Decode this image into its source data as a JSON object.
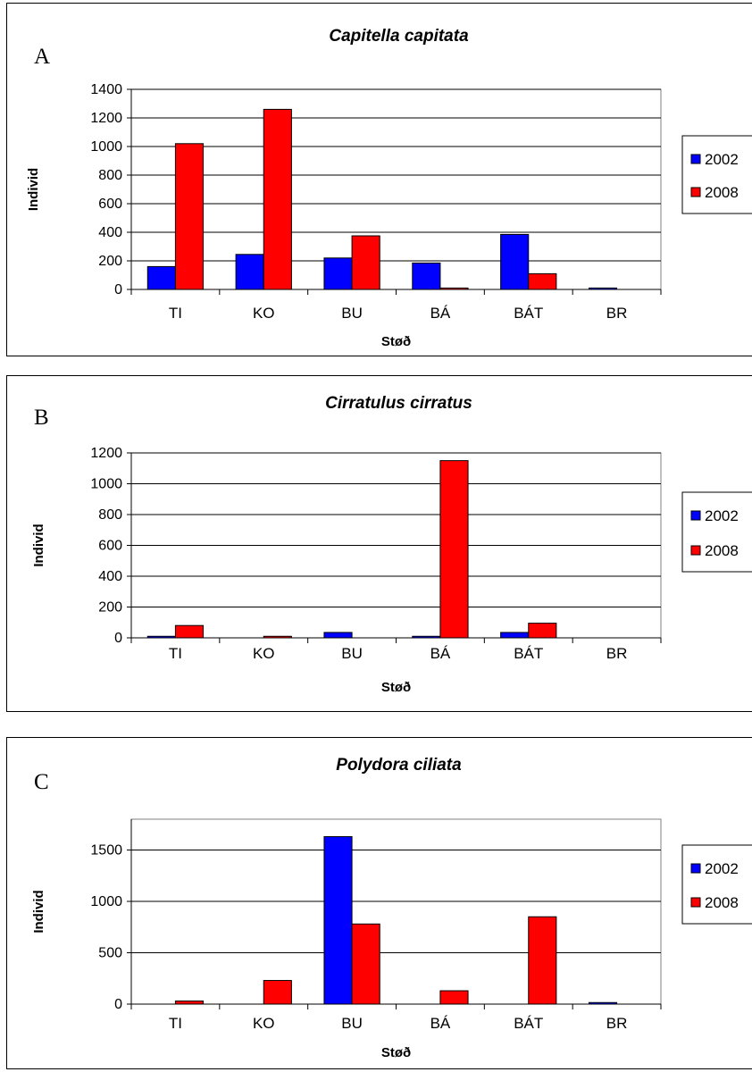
{
  "colors": {
    "2002": "#0000ff",
    "2008": "#ff0000"
  },
  "chart_data": [
    {
      "type": "bar",
      "panel_letter": "A",
      "title": "Capitella capitata",
      "xlabel": "Støð",
      "ylabel": "Individ",
      "categories": [
        "TI",
        "KO",
        "BU",
        "BÁ",
        "BÁT",
        "BR"
      ],
      "ylim": [
        0,
        1400
      ],
      "yticks": [
        0,
        200,
        400,
        600,
        800,
        1000,
        1200,
        1400
      ],
      "grid": true,
      "legend": "right",
      "series": [
        {
          "name": "2002",
          "color": "#0000ff",
          "values": [
            160,
            245,
            220,
            185,
            385,
            10
          ]
        },
        {
          "name": "2008",
          "color": "#ff0000",
          "values": [
            1020,
            1260,
            375,
            10,
            110,
            0
          ]
        }
      ]
    },
    {
      "type": "bar",
      "panel_letter": "B",
      "title": "Cirratulus cirratus",
      "xlabel": "Støð",
      "ylabel": "Individ",
      "categories": [
        "TI",
        "KO",
        "BU",
        "BÁ",
        "BÁT",
        "BR"
      ],
      "ylim": [
        0,
        1200
      ],
      "yticks": [
        0,
        200,
        400,
        600,
        800,
        1000,
        1200
      ],
      "grid": true,
      "legend": "right",
      "series": [
        {
          "name": "2002",
          "color": "#0000ff",
          "values": [
            10,
            0,
            35,
            10,
            35,
            0
          ]
        },
        {
          "name": "2008",
          "color": "#ff0000",
          "values": [
            80,
            10,
            0,
            1150,
            95,
            0
          ]
        }
      ]
    },
    {
      "type": "bar",
      "panel_letter": "C",
      "title": "Polydora ciliata",
      "xlabel": "Støð",
      "ylabel": "Individ",
      "categories": [
        "TI",
        "KO",
        "BU",
        "BÁ",
        "BÁT",
        "BR"
      ],
      "ylim": [
        0,
        1800
      ],
      "yticks": [
        0,
        500,
        1000,
        1500
      ],
      "grid": true,
      "legend": "right",
      "series": [
        {
          "name": "2002",
          "color": "#0000ff",
          "values": [
            0,
            0,
            1630,
            0,
            0,
            15
          ]
        },
        {
          "name": "2008",
          "color": "#ff0000",
          "values": [
            30,
            230,
            780,
            130,
            850,
            0
          ]
        }
      ]
    }
  ]
}
